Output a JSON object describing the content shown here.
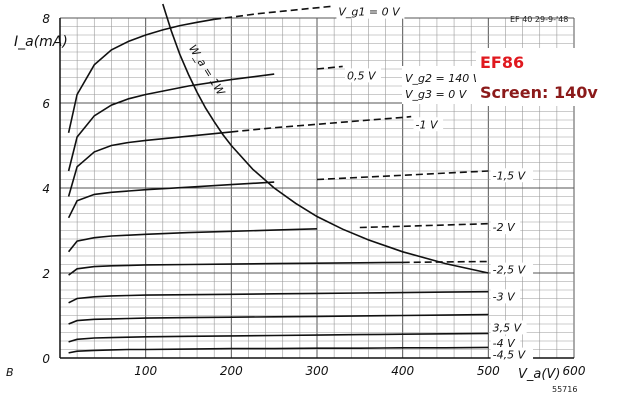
{
  "chart_data": {
    "type": "line",
    "ylabel": "I_a(mA)",
    "xlabel": "V_a(V)",
    "xlim": [
      0,
      600
    ],
    "ylim": [
      0,
      8
    ],
    "x_ticks": [
      0,
      100,
      200,
      300,
      400,
      500,
      600
    ],
    "y_ticks": [
      0,
      2,
      4,
      6,
      8
    ],
    "x_tick_labels": [
      "0",
      "100",
      "200",
      "300",
      "400",
      "500",
      "600"
    ],
    "y_tick_labels": [
      "0",
      "2",
      "4",
      "6",
      "8"
    ],
    "grid": true,
    "corner_note": "EF 40 29-9-'48",
    "figure_number": "55716",
    "bottom_left_mark": "B",
    "conditions": [
      "V_g2 = 140 V",
      "V_g3 = 0 V"
    ],
    "annotation_title": "EF86",
    "annotation_subtitle": "Screen: 140v",
    "series": [
      {
        "name": "V_g1 = 0 V",
        "x": [
          10,
          20,
          40,
          60,
          80,
          100,
          120,
          140,
          160,
          180,
          200,
          230,
          260,
          290,
          320
        ],
        "y": [
          5.3,
          6.2,
          6.9,
          7.25,
          7.45,
          7.6,
          7.72,
          7.82,
          7.9,
          7.97,
          8.02,
          8.1,
          8.16,
          8.22,
          8.28
        ],
        "dashed_from": 180
      },
      {
        "name": "0,5 V",
        "x": [
          10,
          20,
          40,
          60,
          80,
          100,
          150,
          200,
          250,
          300,
          330
        ],
        "y": [
          4.4,
          5.2,
          5.7,
          5.95,
          6.1,
          6.2,
          6.4,
          6.55,
          6.68,
          6.8,
          6.86
        ],
        "dashed_from": 260
      },
      {
        "name": "-1 V",
        "x": [
          10,
          20,
          40,
          60,
          80,
          100,
          150,
          200,
          250,
          300,
          350,
          400,
          410
        ],
        "y": [
          3.8,
          4.5,
          4.85,
          5.0,
          5.07,
          5.12,
          5.22,
          5.32,
          5.42,
          5.5,
          5.58,
          5.66,
          5.68
        ],
        "dashed_from": 200
      },
      {
        "name": "-1,5 V",
        "x": [
          10,
          20,
          40,
          60,
          80,
          100,
          150,
          200,
          250,
          300,
          350,
          400,
          450,
          500
        ],
        "y": [
          3.3,
          3.7,
          3.85,
          3.9,
          3.93,
          3.96,
          4.02,
          4.08,
          4.14,
          4.2,
          4.25,
          4.3,
          4.35,
          4.4
        ],
        "dashed_from": 260
      },
      {
        "name": "-2 V",
        "x": [
          10,
          20,
          40,
          60,
          80,
          100,
          150,
          200,
          250,
          300,
          350,
          400,
          450,
          500
        ],
        "y": [
          2.5,
          2.75,
          2.83,
          2.87,
          2.89,
          2.91,
          2.95,
          2.98,
          3.01,
          3.04,
          3.07,
          3.1,
          3.13,
          3.16
        ],
        "dashed_from": 320
      },
      {
        "name": "-2,5 V",
        "x": [
          10,
          20,
          40,
          60,
          80,
          100,
          150,
          200,
          250,
          300,
          350,
          400,
          450,
          500
        ],
        "y": [
          1.95,
          2.1,
          2.15,
          2.17,
          2.18,
          2.19,
          2.2,
          2.21,
          2.22,
          2.23,
          2.24,
          2.25,
          2.26,
          2.27
        ],
        "dashed_from": 400
      },
      {
        "name": "-3 V",
        "x": [
          10,
          20,
          40,
          60,
          80,
          100,
          150,
          200,
          250,
          300,
          350,
          400,
          450,
          500
        ],
        "y": [
          1.3,
          1.4,
          1.44,
          1.46,
          1.47,
          1.48,
          1.49,
          1.5,
          1.51,
          1.52,
          1.53,
          1.54,
          1.55,
          1.56
        ]
      },
      {
        "name": "3,5 V",
        "x": [
          10,
          20,
          40,
          60,
          80,
          100,
          150,
          200,
          250,
          300,
          350,
          400,
          450,
          500
        ],
        "y": [
          0.8,
          0.88,
          0.91,
          0.92,
          0.93,
          0.94,
          0.95,
          0.96,
          0.97,
          0.98,
          0.99,
          1.0,
          1.01,
          1.02
        ]
      },
      {
        "name": "-4 V",
        "x": [
          10,
          20,
          40,
          60,
          80,
          100,
          150,
          200,
          250,
          300,
          350,
          400,
          450,
          500
        ],
        "y": [
          0.38,
          0.44,
          0.47,
          0.48,
          0.49,
          0.5,
          0.51,
          0.52,
          0.53,
          0.54,
          0.55,
          0.56,
          0.57,
          0.58
        ]
      },
      {
        "name": "-4,5 V",
        "x": [
          10,
          20,
          40,
          60,
          80,
          100,
          150,
          200,
          250,
          300,
          350,
          400,
          450,
          500
        ],
        "y": [
          0.12,
          0.16,
          0.18,
          0.19,
          0.2,
          0.2,
          0.21,
          0.22,
          0.22,
          0.23,
          0.23,
          0.24,
          0.24,
          0.25
        ]
      }
    ],
    "label_anchors": [
      {
        "x": 325,
        "y": 8.15
      },
      {
        "x": 335,
        "y": 6.65
      },
      {
        "x": 415,
        "y": 5.5
      },
      {
        "x": 505,
        "y": 4.3
      },
      {
        "x": 505,
        "y": 3.08
      },
      {
        "x": 505,
        "y": 2.08
      },
      {
        "x": 505,
        "y": 1.45
      },
      {
        "x": 505,
        "y": 0.72
      },
      {
        "x": 505,
        "y": 0.35
      },
      {
        "x": 505,
        "y": 0.08
      }
    ],
    "power_curve": {
      "name": "W_a = 1W",
      "x": [
        120,
        130,
        140,
        150,
        160,
        170,
        180,
        190,
        200,
        225,
        250,
        275,
        300,
        330,
        360,
        400,
        450,
        500
      ],
      "y": [
        8.33,
        7.69,
        7.14,
        6.67,
        6.25,
        5.88,
        5.56,
        5.26,
        5.0,
        4.44,
        4.0,
        3.64,
        3.33,
        3.03,
        2.78,
        2.5,
        2.22,
        2.0
      ],
      "label_x": 150,
      "label_y": 7.3
    }
  }
}
